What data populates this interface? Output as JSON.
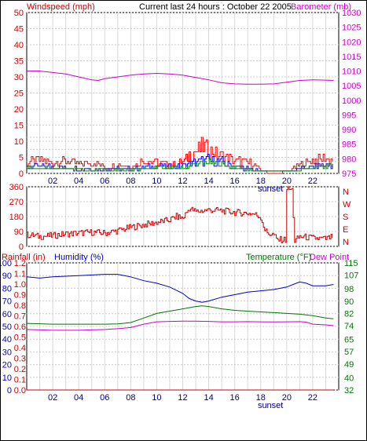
{
  "header": {
    "left": "Windspeed (mph)",
    "center": "Current last 24 hours : October 22 2005",
    "right": "Barometer (mb)"
  },
  "colors": {
    "wind_axis": "#cc0000",
    "baro_axis": "#cc00cc",
    "dir_axis": "#cc0000",
    "rain_axis": "#cc0000",
    "humidity": "#0000cc",
    "temperature": "#007700",
    "dewpoint": "#cc00cc",
    "grid": "#cccccc",
    "vgrid": "#d8d8d8"
  },
  "x_axis": {
    "tick_labels": [
      "02",
      "04",
      "06",
      "08",
      "10",
      "12",
      "14",
      "16",
      "18",
      "20",
      "22"
    ],
    "sunset_label": "sunset",
    "sunset_hour": 18.75
  },
  "chart_data": [
    {
      "type": "line",
      "name": "wind_barometer",
      "title": "Current last 24 hours : October 22 2005",
      "xlabel": "",
      "ylabel_left": "Windspeed (mph)",
      "ylabel_right": "Barometer (mb)",
      "xlim": [
        0,
        24
      ],
      "ylim_left": [
        0,
        50
      ],
      "ylim_right": [
        975,
        1030
      ],
      "left_ticks": [
        0,
        5,
        10,
        15,
        20,
        25,
        30,
        35,
        40,
        45,
        50
      ],
      "right_ticks": [
        975,
        980,
        985,
        990,
        995,
        1000,
        1005,
        1010,
        1015,
        1020,
        1025,
        1030
      ],
      "barometer": {
        "x": [
          0,
          1,
          2,
          3,
          4,
          5,
          5.5,
          6,
          7,
          8,
          9,
          10,
          11,
          12,
          13,
          14,
          15,
          16,
          17,
          18,
          19,
          20,
          21,
          22,
          23,
          23.6
        ],
        "values": [
          1010,
          1010,
          1009.5,
          1009,
          1008,
          1007,
          1006.8,
          1007.4,
          1008,
          1008.6,
          1009,
          1009.2,
          1009,
          1008.6,
          1007.8,
          1007,
          1006,
          1005.6,
          1005.5,
          1005.5,
          1005.6,
          1006.2,
          1006.8,
          1007,
          1006.9,
          1006.8
        ]
      },
      "wind_gust_envelope": {
        "x": [
          0,
          1,
          2,
          3,
          4,
          5,
          6,
          7,
          8,
          9,
          10,
          11,
          12,
          12.5,
          13,
          13.5,
          14,
          14.5,
          15,
          16,
          17,
          17.5,
          18,
          19,
          20,
          21,
          22,
          23,
          23.6
        ],
        "values": [
          5,
          6,
          5,
          6,
          4,
          5,
          3,
          4,
          3,
          6,
          5,
          4,
          5,
          9,
          10,
          12,
          11,
          9,
          8,
          6,
          5,
          4,
          1,
          0,
          1,
          4,
          6,
          7,
          6
        ]
      },
      "wind_avg_envelope": {
        "x": [
          0,
          2,
          4,
          6,
          8,
          10,
          12,
          13,
          14,
          15,
          16,
          18,
          20,
          22,
          23.6
        ],
        "values": [
          3,
          3,
          2,
          2,
          2,
          3,
          3,
          5,
          6,
          5,
          3,
          1,
          1,
          3,
          4
        ]
      },
      "overlay_left_ticks": [
        0,
        5,
        10,
        15
      ],
      "overlay_right_ticks": [
        975,
        980,
        985,
        990
      ]
    },
    {
      "type": "scatter",
      "name": "wind_direction",
      "title": "",
      "ylim": [
        0,
        360
      ],
      "left_ticks": [
        0,
        90,
        180,
        270,
        360
      ],
      "right_labels": [
        "N",
        "W",
        "S",
        "E",
        "N"
      ],
      "direction": {
        "x": [
          0,
          1,
          2,
          3,
          4,
          5,
          6,
          7,
          8,
          9,
          10,
          11,
          11.5,
          12,
          12.5,
          13,
          14,
          15,
          16,
          17,
          17.5,
          18,
          18.3,
          18.5,
          19,
          19.2,
          19.9,
          20.0,
          20.4,
          20.6,
          21,
          22,
          23,
          23.6
        ],
        "values": [
          70,
          60,
          65,
          75,
          80,
          85,
          80,
          95,
          115,
          130,
          145,
          160,
          180,
          170,
          230,
          210,
          220,
          215,
          205,
          200,
          195,
          175,
          100,
          80,
          70,
          40,
          40,
          350,
          340,
          30,
          60,
          50,
          45,
          60
        ]
      }
    },
    {
      "type": "line",
      "name": "rain_humidity_temperature",
      "title": "",
      "ylabel_left_rain": "Rainfall (in)",
      "ylabel_left_humidity": "Humidity (%)",
      "ylabel_right_temp": "Temperature (°F)",
      "ylabel_right_dew": "Dew Point",
      "ylim_humidity": [
        0,
        100
      ],
      "ylim_rain": [
        0,
        1.2
      ],
      "ylim_temp": [
        32,
        115
      ],
      "humidity_ticks": [
        0,
        10,
        20,
        30,
        40,
        50,
        60,
        70,
        80,
        90,
        100
      ],
      "rain_ticks": [
        "0.0",
        "0.1",
        "0.2",
        "0.3",
        "0.4",
        "0.5",
        "0.6",
        "0.7",
        "0.8",
        "0.9",
        "1.0",
        "1.1",
        "1.2"
      ],
      "temp_ticks": [
        32,
        40,
        49,
        57,
        65,
        74,
        82,
        90,
        98,
        107,
        115
      ],
      "humidity": {
        "x": [
          0,
          1,
          2,
          4,
          6,
          7,
          7.5,
          8,
          9,
          10,
          11,
          12,
          12.5,
          13,
          13.5,
          14,
          15,
          16,
          17,
          18,
          19,
          20,
          20.5,
          21,
          21.5,
          22,
          23,
          23.6
        ],
        "values": [
          89,
          88,
          89,
          90,
          91,
          91,
          90,
          89,
          86,
          84,
          81,
          76,
          72,
          70,
          69,
          70,
          73,
          75,
          77,
          78,
          79,
          81,
          83,
          85,
          84,
          82,
          82,
          83
        ]
      },
      "temperature": {
        "x": [
          0,
          2,
          4,
          6,
          7,
          8,
          9,
          10,
          11,
          12,
          13,
          13.5,
          14,
          15,
          16,
          17,
          18,
          19,
          20,
          21,
          22,
          23,
          23.6
        ],
        "values": [
          75.5,
          75,
          75,
          75,
          75.2,
          76,
          79,
          82,
          83.5,
          85,
          86.5,
          87,
          86.5,
          85,
          84,
          83.5,
          83,
          82.5,
          82,
          81.5,
          80.5,
          79,
          78.5
        ]
      },
      "dewpoint": {
        "x": [
          0,
          2,
          4,
          6,
          7,
          8,
          9,
          10,
          11,
          12,
          13,
          14,
          15,
          16,
          17,
          18,
          19,
          20,
          21,
          21.5,
          22,
          23,
          23.6
        ],
        "values": [
          71.5,
          71,
          71,
          71.5,
          72,
          72.8,
          75,
          76.5,
          76.8,
          77,
          77,
          76.8,
          76.5,
          76.5,
          76.6,
          76.5,
          76.4,
          76.5,
          76.6,
          76.3,
          75,
          74.5,
          74
        ]
      },
      "rainfall": {
        "x": [
          0,
          23.6
        ],
        "values": [
          0.0,
          0.0
        ]
      }
    }
  ]
}
